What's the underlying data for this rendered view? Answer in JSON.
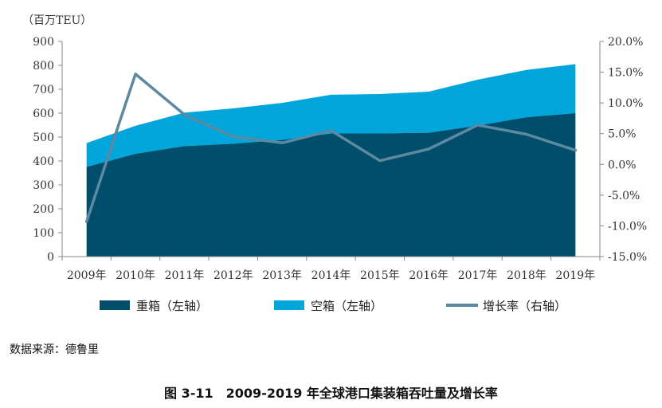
{
  "chart_data": {
    "type": "area",
    "y_unit_label": "（百万TEU）",
    "categories": [
      "2009年",
      "2010年",
      "2011年",
      "2012年",
      "2013年",
      "2014年",
      "2015年",
      "2016年",
      "2017年",
      "2018年",
      "2019年"
    ],
    "series": [
      {
        "name": "重箱（左轴）",
        "type": "area",
        "axis": "left",
        "color": "#004E6B",
        "values": [
          375,
          430,
          462,
          472,
          488,
          515,
          515,
          518,
          548,
          583,
          600
        ]
      },
      {
        "name": "空箱（左轴）",
        "type": "area",
        "axis": "left",
        "color": "#00A6DB",
        "values": [
          100,
          117,
          140,
          148,
          155,
          162,
          165,
          172,
          192,
          198,
          205
        ]
      },
      {
        "name": "增长率（右轴）",
        "type": "line",
        "axis": "right",
        "color": "#5B8AA0",
        "values": [
          -9.3,
          14.7,
          8.1,
          4.5,
          3.5,
          5.5,
          0.6,
          2.5,
          6.4,
          4.9,
          2.3
        ]
      }
    ],
    "left_axis": {
      "ylim": [
        0,
        900
      ],
      "ticks": [
        "0",
        "100",
        "200",
        "300",
        "400",
        "500",
        "600",
        "700",
        "800",
        "900"
      ]
    },
    "right_axis": {
      "ylim": [
        -15,
        20
      ],
      "ticks": [
        "-15.0%",
        "-10.0%",
        "-5.0%",
        "0.0%",
        "5.0%",
        "10.0%",
        "15.0%",
        "20.0%"
      ]
    },
    "stacked": true,
    "grid": false,
    "legend_position": "bottom"
  },
  "source_text": "数据来源：德鲁里",
  "caption": "图 3-11　2009-2019 年全球港口集装箱吞吐量及增长率"
}
